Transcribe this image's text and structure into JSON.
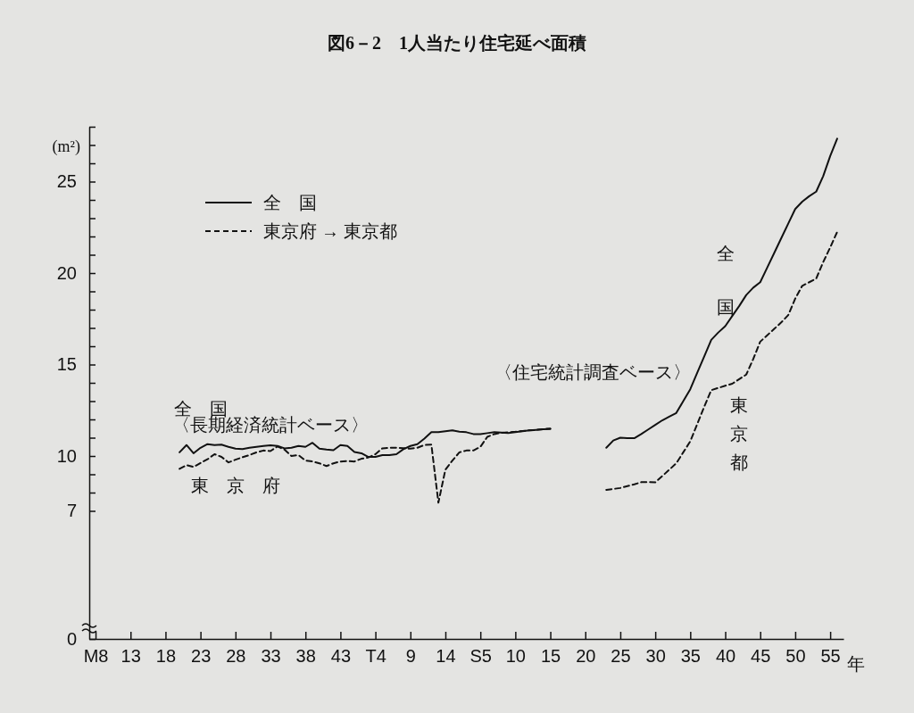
{
  "chart_data": {
    "type": "line",
    "title": "図6－2　1人当たり住宅延べ面積",
    "ylabel": "(m²)",
    "xlabel": "年",
    "categories": [
      "M8",
      null,
      null,
      null,
      null,
      "13",
      null,
      null,
      null,
      null,
      "18",
      null,
      null,
      null,
      null,
      "23",
      null,
      null,
      null,
      null,
      "28",
      null,
      null,
      null,
      null,
      "33",
      null,
      null,
      null,
      null,
      "38",
      null,
      null,
      null,
      null,
      "43",
      null,
      null,
      null,
      null,
      "T4",
      null,
      null,
      null,
      null,
      "9",
      null,
      null,
      null,
      null,
      "14",
      null,
      null,
      null,
      null,
      "S5",
      null,
      null,
      null,
      null,
      "10",
      null,
      null,
      null,
      null,
      "15",
      null,
      null,
      null,
      null,
      "20",
      null,
      null,
      null,
      null,
      "25",
      null,
      null,
      null,
      null,
      "30",
      null,
      null,
      null,
      null,
      "35",
      null,
      null,
      null,
      null,
      "40",
      null,
      null,
      null,
      null,
      "45",
      null,
      null,
      null,
      null,
      "50",
      null,
      null,
      null,
      null,
      "55",
      null
    ],
    "ylim": [
      0,
      28
    ],
    "yticks": [
      0,
      7,
      {
        "value": 8,
        "label": null
      },
      {
        "value": 9,
        "label": null
      },
      10,
      {
        "value": 11,
        "label": null
      },
      {
        "value": 12,
        "label": null
      },
      {
        "value": 13,
        "label": null
      },
      {
        "value": 14,
        "label": null
      },
      15,
      {
        "value": 16,
        "label": null
      },
      {
        "value": 17,
        "label": null
      },
      {
        "value": 18,
        "label": null
      },
      {
        "value": 19,
        "label": null
      },
      20,
      {
        "value": 21,
        "label": null
      },
      {
        "value": 22,
        "label": null
      },
      {
        "value": 23,
        "label": null
      },
      {
        "value": 24,
        "label": null
      },
      25,
      {
        "value": 26,
        "label": null
      },
      {
        "value": 27,
        "label": null
      },
      {
        "value": 28,
        "label": null
      }
    ],
    "grid": false,
    "legend": "top left",
    "marker": "none",
    "series": [
      {
        "name": "全　国",
        "color": "#111111",
        "line_style": "solid",
        "values": [
          null,
          null,
          null,
          null,
          null,
          null,
          null,
          null,
          null,
          null,
          null,
          null,
          10.2,
          10.6,
          10.15,
          10.45,
          10.65,
          10.6,
          10.62,
          10.5,
          10.4,
          10.38,
          10.45,
          10.5,
          10.55,
          10.58,
          10.55,
          10.42,
          10.45,
          10.55,
          10.5,
          10.72,
          10.4,
          10.35,
          10.32,
          10.6,
          10.55,
          10.22,
          10.15,
          9.95,
          9.95,
          10.05,
          10.05,
          10.1,
          10.37,
          10.55,
          10.65,
          10.95,
          11.3,
          11.3,
          11.35,
          11.4,
          11.33,
          11.3,
          11.2,
          11.2,
          11.25,
          11.3,
          11.28,
          11.26,
          11.3,
          11.35,
          11.4,
          11.43,
          11.46,
          11.48,
          null,
          null,
          null,
          null,
          null,
          null,
          null,
          10.45,
          10.85,
          11.0,
          10.98,
          10.97,
          11.2,
          11.45,
          11.7,
          11.95,
          12.15,
          12.35,
          13.0,
          13.65,
          14.55,
          15.45,
          16.35,
          16.75,
          17.1,
          17.65,
          18.2,
          18.8,
          19.2,
          19.5,
          20.3,
          21.1,
          21.9,
          22.7,
          23.5,
          23.9,
          24.2,
          24.45,
          25.3,
          26.4,
          27.35
        ]
      },
      {
        "name": "東京府 → 東京都",
        "color": "#111111",
        "line_style": "dashed",
        "values": [
          null,
          null,
          null,
          null,
          null,
          null,
          null,
          null,
          null,
          null,
          null,
          null,
          9.3,
          9.5,
          9.4,
          9.62,
          9.82,
          10.1,
          9.95,
          9.65,
          9.8,
          9.93,
          10.05,
          10.2,
          10.3,
          10.27,
          10.52,
          10.35,
          10.0,
          10.05,
          9.75,
          9.7,
          9.6,
          9.45,
          9.6,
          9.7,
          9.72,
          9.7,
          9.85,
          9.92,
          10.1,
          10.42,
          10.45,
          10.45,
          10.43,
          10.4,
          10.45,
          10.6,
          10.62,
          7.45,
          9.25,
          9.75,
          10.2,
          10.3,
          10.3,
          10.5,
          11.05,
          11.2,
          11.27,
          11.3,
          11.33,
          11.37,
          11.4,
          11.43,
          11.47,
          11.5,
          null,
          null,
          null,
          null,
          null,
          null,
          null,
          8.15,
          8.2,
          8.25,
          8.35,
          8.45,
          8.57,
          8.58,
          8.56,
          8.9,
          9.25,
          9.6,
          10.2,
          10.8,
          11.75,
          12.7,
          13.6,
          13.72,
          13.84,
          13.95,
          14.2,
          14.45,
          15.3,
          16.25,
          16.6,
          16.95,
          17.3,
          17.7,
          18.6,
          19.3,
          19.5,
          19.7,
          20.6,
          21.4,
          22.25
        ]
      }
    ],
    "annotations": [
      "全　国",
      "〈長期経済統計ベース〉",
      "東　京　府",
      "〈住宅統計調査ベース〉",
      "全国",
      "東京都"
    ]
  }
}
